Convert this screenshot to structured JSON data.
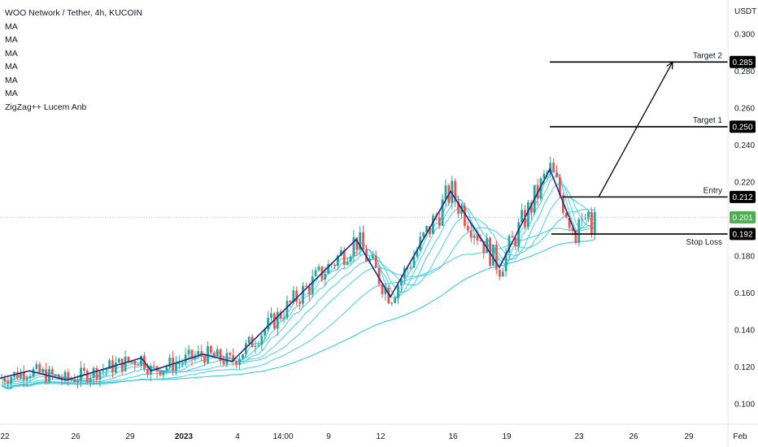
{
  "header": {
    "symbol_line": "WOO Network / Tether, 4h, KUCOIN",
    "indicators": [
      "MA",
      "MA",
      "MA",
      "MA",
      "MA",
      "MA",
      "ZigZag++ Lucem Anb"
    ]
  },
  "chart_data": {
    "type": "candlestick",
    "currency_label": "USDT",
    "y_ticks": [
      0.1,
      0.12,
      0.14,
      0.16,
      0.18,
      0.22,
      0.24,
      0.26,
      0.28,
      0.3
    ],
    "y_tick_labels": [
      "0.100",
      "0.120",
      "0.140",
      "0.160",
      "0.180",
      "0.220",
      "0.240",
      "0.260",
      "0.280",
      "0.300"
    ],
    "ylim": [
      0.09,
      0.315
    ],
    "x_ticks": [
      {
        "label": "22",
        "bold": false
      },
      {
        "label": "26",
        "bold": false
      },
      {
        "label": "29",
        "bold": false
      },
      {
        "label": "2023",
        "bold": true
      },
      {
        "label": "4",
        "bold": false
      },
      {
        "label": "14:00",
        "bold": false
      },
      {
        "label": "9",
        "bold": false
      },
      {
        "label": "12",
        "bold": false
      },
      {
        "label": "16",
        "bold": false
      },
      {
        "label": "19",
        "bold": false
      },
      {
        "label": "23",
        "bold": false
      },
      {
        "label": "26",
        "bold": false
      },
      {
        "label": "29",
        "bold": false
      },
      {
        "label": "Feb",
        "bold": false
      }
    ],
    "levels": [
      {
        "name": "Target 2",
        "value": 0.285,
        "badge": "0.285"
      },
      {
        "name": "Target 1",
        "value": 0.25,
        "badge": "0.250"
      },
      {
        "name": "Entry",
        "value": 0.212,
        "badge": "0.212"
      },
      {
        "name": "Stop Loss",
        "value": 0.192,
        "badge": "0.192"
      }
    ],
    "last_price": {
      "value": 0.201,
      "badge": "0.201"
    },
    "zigzag_points": [
      0.114,
      0.118,
      0.113,
      0.125,
      0.118,
      0.127,
      0.123,
      0.189,
      0.158,
      0.215,
      0.174,
      0.227,
      0.192
    ],
    "projection": [
      0.212,
      0.285
    ],
    "colors": {
      "up": "#26a69a",
      "down": "#ef5350",
      "zigzag": "#1a2a80",
      "ma": "#26c6da",
      "price_badge": "#4caf50",
      "level": "#000000"
    }
  }
}
